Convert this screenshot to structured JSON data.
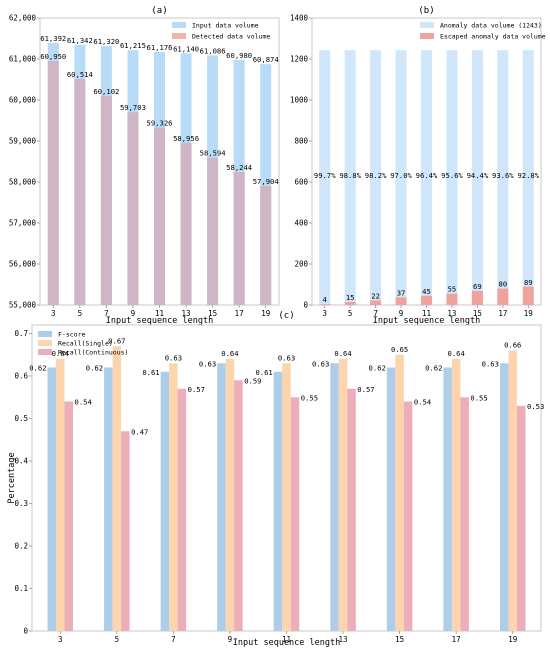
{
  "chart_data": [
    {
      "panel": "(a)",
      "type": "bar",
      "categories": [
        "3",
        "5",
        "7",
        "9",
        "11",
        "13",
        "15",
        "17",
        "19"
      ],
      "series": [
        {
          "name": "Input data volume",
          "values": [
            61392,
            61342,
            61320,
            61215,
            61176,
            61140,
            61086,
            60980,
            60874
          ],
          "labels": [
            "61,392",
            "61,342",
            "61,320",
            "61,215",
            "61,176",
            "61,140",
            "61,086",
            "60,980",
            "60,874"
          ],
          "color": "#b8dcf8"
        },
        {
          "name": "Detected data volume",
          "values": [
            60950,
            60514,
            60102,
            59703,
            59326,
            58956,
            58594,
            58244,
            57904
          ],
          "labels": [
            "60,950",
            "60,514",
            "60,102",
            "59,703",
            "59,326",
            "58,956",
            "58,594",
            "58,244",
            "57,904"
          ],
          "color": "#cfb6c4",
          "legend_color": "#f4b3aa"
        }
      ],
      "xlabel": "Input sequence length",
      "ylabel": "",
      "ylim": [
        55000,
        62000
      ],
      "yticks": [
        55000,
        56000,
        57000,
        58000,
        59000,
        60000,
        61000,
        62000
      ],
      "ytick_labels": [
        "55,000",
        "56,000",
        "57,000",
        "58,000",
        "59,000",
        "60,000",
        "61,000",
        "62,000"
      ],
      "legend": "top-right"
    },
    {
      "panel": "(b)",
      "type": "bar",
      "categories": [
        "3",
        "5",
        "7",
        "9",
        "11",
        "13",
        "15",
        "17",
        "19"
      ],
      "series": [
        {
          "name": "Anomaly data volume (1243)",
          "values": [
            1243,
            1243,
            1243,
            1243,
            1243,
            1243,
            1243,
            1243,
            1243
          ],
          "color": "#cfe6fb"
        },
        {
          "name": "Escaped anomaly data volume",
          "values": [
            4,
            15,
            22,
            37,
            45,
            55,
            69,
            80,
            89
          ],
          "color": "#f0a39c"
        }
      ],
      "pct_labels": [
        "99.7%",
        "98.8%",
        "98.2%",
        "97.0%",
        "96.4%",
        "95.6%",
        "94.4%",
        "93.6%",
        "92.8%"
      ],
      "xlabel": "Input sequence length",
      "ylabel": "",
      "ylim": [
        0,
        1400
      ],
      "yticks": [
        0,
        200,
        400,
        600,
        800,
        1000,
        1200,
        1400
      ],
      "ytick_labels": [
        "0",
        "200",
        "400",
        "600",
        "800",
        "1000",
        "1200",
        "1400"
      ],
      "legend": "top-right"
    },
    {
      "panel": "(c)",
      "type": "bar",
      "categories": [
        "3",
        "5",
        "7",
        "9",
        "11",
        "13",
        "15",
        "17",
        "19"
      ],
      "series": [
        {
          "name": "F-score",
          "values": [
            0.62,
            0.62,
            0.61,
            0.63,
            0.61,
            0.63,
            0.62,
            0.62,
            0.63
          ],
          "color": "#aecde8"
        },
        {
          "name": "Recall(Single)",
          "values": [
            0.64,
            0.67,
            0.63,
            0.64,
            0.63,
            0.64,
            0.65,
            0.64,
            0.66
          ],
          "color": "#fcd5ae"
        },
        {
          "name": "Recall(Continuous)",
          "values": [
            0.54,
            0.47,
            0.57,
            0.59,
            0.55,
            0.57,
            0.54,
            0.55,
            0.53
          ],
          "color": "#ecafb9"
        }
      ],
      "xlabel": "Input sequence length",
      "ylabel": "Percentage",
      "ylim": [
        0,
        0.72
      ],
      "yticks": [
        0,
        0.1,
        0.2,
        0.3,
        0.4,
        0.5,
        0.6,
        0.7
      ],
      "ytick_labels": [
        "0",
        "0.1",
        "0.2",
        "0.3",
        "0.4",
        "0.5",
        "0.6",
        "0.7"
      ],
      "legend": "top-left"
    }
  ]
}
